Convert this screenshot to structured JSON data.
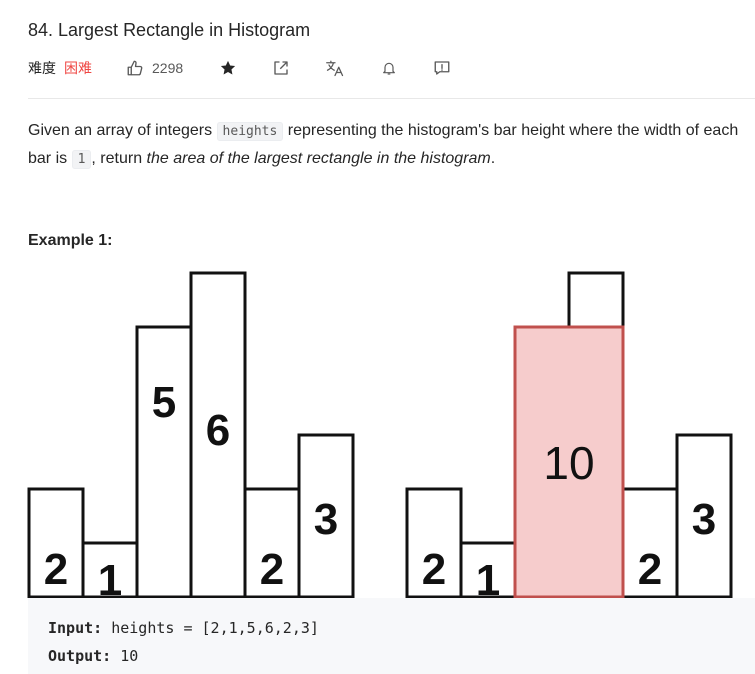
{
  "problem": {
    "title": "84. Largest Rectangle in Histogram",
    "difficulty_label": "难度",
    "difficulty_value": "困难",
    "likes": "2298"
  },
  "toolbar": {
    "icons": [
      "thumbs-up-icon",
      "star-icon",
      "share-icon",
      "translate-icon",
      "bell-icon",
      "feedback-icon"
    ]
  },
  "description": {
    "part1": "Given an array of integers ",
    "code1": "heights",
    "part2": " representing the histogram's bar height where the width of each bar is ",
    "code2": "1",
    "part3": ", return ",
    "emphasis": "the area of the largest rectangle in the histogram",
    "part4": "."
  },
  "example": {
    "title": "Example 1:",
    "input_label": "Input:",
    "input_value": "heights = [2,1,5,6,2,3]",
    "output_label": "Output:",
    "output_value": "10"
  },
  "histogram_data": {
    "heights": [
      2,
      1,
      5,
      6,
      2,
      3
    ],
    "labels": [
      "2",
      "1",
      "5",
      "6",
      "2",
      "3"
    ],
    "largest_rectangle": {
      "start_index": 2,
      "end_index": 3,
      "height": 5,
      "area": 10,
      "label": "10"
    },
    "highlight_fill": "#f6cccc",
    "highlight_stroke": "#c0504d"
  }
}
